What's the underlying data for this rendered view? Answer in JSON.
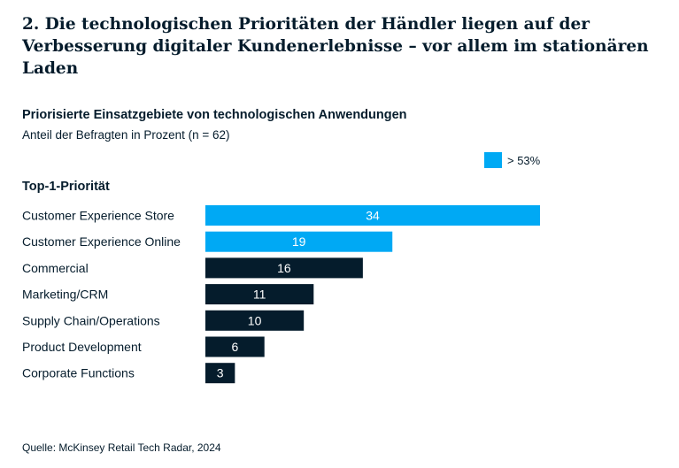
{
  "heading": "2. Die technologischen Prioritäten der Händler liegen auf der Verbesserung digitaler Kundenerlebnisse – vor allem im stationären Laden",
  "legend": {
    "label": "> 53%",
    "color": "#00a9f4"
  },
  "source": "Quelle: McKinsey Retail Tech Radar, 2024",
  "colors": {
    "highlight": "#00a9f4",
    "default": "#051c2c"
  },
  "chart_data": {
    "type": "bar",
    "orientation": "horizontal",
    "title": "Priorisierte Einsatzgebiete von technologischen Anwendungen",
    "subtitle": "Anteil der Befragten in Prozent (n = 62)",
    "section_label": "Top-1-Priorität",
    "categories": [
      "Customer Experience Store",
      "Customer Experience Online",
      "Commercial",
      "Marketing/CRM",
      "Supply Chain/Operations",
      "Product Development",
      "Corporate Functions"
    ],
    "values": [
      34,
      19,
      16,
      11,
      10,
      6,
      3
    ],
    "highlighted": [
      true,
      true,
      false,
      false,
      false,
      false,
      false
    ],
    "xlim": [
      0,
      34
    ],
    "grid": false,
    "legend_position": "top-right"
  }
}
